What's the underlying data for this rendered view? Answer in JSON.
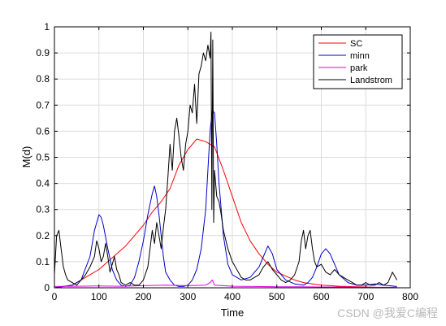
{
  "chart_data": {
    "type": "line",
    "xlabel": "Time",
    "ylabel": "M(d)",
    "xlim": [
      0,
      800
    ],
    "ylim": [
      0,
      1
    ],
    "xticks": [
      0,
      100,
      200,
      300,
      400,
      500,
      600,
      700,
      800
    ],
    "yticks": [
      0,
      0.1,
      0.2,
      0.3,
      0.4,
      0.5,
      0.6,
      0.7,
      0.8,
      0.9,
      1
    ],
    "grid": true,
    "legend_position": "top-right",
    "series": [
      {
        "name": "SC",
        "color": "#ff0000",
        "x": [
          0,
          20,
          40,
          60,
          80,
          100,
          120,
          140,
          160,
          180,
          200,
          220,
          240,
          260,
          280,
          300,
          320,
          340,
          350,
          360,
          380,
          400,
          420,
          440,
          460,
          480,
          500,
          520,
          540,
          560,
          580,
          600,
          620,
          640,
          660,
          680,
          700,
          720,
          740,
          770
        ],
        "y": [
          0.0,
          0.005,
          0.01,
          0.03,
          0.05,
          0.07,
          0.1,
          0.13,
          0.16,
          0.2,
          0.24,
          0.29,
          0.33,
          0.38,
          0.47,
          0.53,
          0.57,
          0.56,
          0.55,
          0.54,
          0.45,
          0.35,
          0.25,
          0.18,
          0.13,
          0.09,
          0.06,
          0.045,
          0.03,
          0.02,
          0.015,
          0.01,
          0.008,
          0.006,
          0.005,
          0.004,
          0.003,
          0.002,
          0.001,
          0.0
        ]
      },
      {
        "name": "minn",
        "color": "#0000cc",
        "x": [
          0,
          20,
          40,
          60,
          80,
          90,
          100,
          105,
          110,
          120,
          130,
          140,
          150,
          160,
          170,
          180,
          190,
          200,
          210,
          220,
          225,
          230,
          235,
          240,
          245,
          250,
          260,
          270,
          280,
          290,
          300,
          310,
          320,
          330,
          340,
          345,
          350,
          355,
          360,
          365,
          370,
          380,
          390,
          400,
          420,
          440,
          460,
          470,
          480,
          490,
          500,
          520,
          540,
          560,
          570,
          580,
          590,
          600,
          610,
          620,
          630,
          640,
          660,
          680,
          700,
          720,
          740,
          770
        ],
        "y": [
          0.0,
          0.005,
          0.01,
          0.03,
          0.12,
          0.22,
          0.28,
          0.27,
          0.24,
          0.15,
          0.07,
          0.03,
          0.01,
          0.005,
          0.01,
          0.04,
          0.1,
          0.18,
          0.28,
          0.36,
          0.39,
          0.35,
          0.28,
          0.2,
          0.12,
          0.06,
          0.03,
          0.01,
          0.005,
          0.005,
          0.01,
          0.03,
          0.07,
          0.15,
          0.3,
          0.45,
          0.6,
          0.68,
          0.67,
          0.55,
          0.4,
          0.2,
          0.09,
          0.05,
          0.03,
          0.04,
          0.08,
          0.12,
          0.16,
          0.13,
          0.07,
          0.03,
          0.015,
          0.01,
          0.02,
          0.04,
          0.08,
          0.13,
          0.15,
          0.13,
          0.09,
          0.05,
          0.02,
          0.01,
          0.01,
          0.015,
          0.01,
          0.005
        ]
      },
      {
        "name": "park",
        "color": "#e000e0",
        "x": [
          0,
          50,
          100,
          150,
          200,
          250,
          300,
          340,
          350,
          355,
          360,
          400,
          450,
          500,
          550,
          600,
          650,
          700,
          750,
          770
        ],
        "y": [
          0.005,
          0.006,
          0.007,
          0.006,
          0.008,
          0.01,
          0.008,
          0.01,
          0.02,
          0.03,
          0.01,
          0.006,
          0.005,
          0.004,
          0.004,
          0.003,
          0.003,
          0.002,
          0.002,
          0.002
        ]
      },
      {
        "name": "Landstrom",
        "color": "#000000",
        "x": [
          0,
          5,
          10,
          15,
          20,
          25,
          30,
          40,
          50,
          60,
          70,
          80,
          90,
          95,
          100,
          105,
          110,
          115,
          120,
          125,
          130,
          135,
          140,
          145,
          150,
          160,
          170,
          180,
          190,
          200,
          210,
          220,
          225,
          230,
          235,
          240,
          245,
          250,
          255,
          260,
          265,
          270,
          275,
          280,
          285,
          290,
          295,
          300,
          305,
          310,
          315,
          320,
          325,
          330,
          335,
          340,
          345,
          350,
          352,
          354,
          356,
          358,
          360,
          365,
          370,
          375,
          380,
          390,
          400,
          410,
          420,
          430,
          440,
          450,
          460,
          470,
          480,
          490,
          500,
          510,
          520,
          530,
          540,
          550,
          555,
          560,
          565,
          570,
          575,
          580,
          585,
          590,
          600,
          610,
          620,
          630,
          640,
          650,
          660,
          670,
          680,
          690,
          700,
          710,
          720,
          730,
          740,
          750,
          760,
          770
        ],
        "y": [
          0.05,
          0.2,
          0.22,
          0.15,
          0.08,
          0.05,
          0.03,
          0.02,
          0.01,
          0.03,
          0.05,
          0.08,
          0.12,
          0.18,
          0.15,
          0.1,
          0.12,
          0.17,
          0.12,
          0.06,
          0.09,
          0.12,
          0.07,
          0.05,
          0.02,
          0.01,
          0.02,
          0.01,
          0.01,
          0.03,
          0.08,
          0.22,
          0.17,
          0.25,
          0.2,
          0.15,
          0.23,
          0.3,
          0.42,
          0.55,
          0.45,
          0.6,
          0.65,
          0.58,
          0.5,
          0.45,
          0.55,
          0.6,
          0.7,
          0.67,
          0.78,
          0.63,
          0.82,
          0.85,
          0.9,
          0.87,
          0.93,
          0.88,
          0.98,
          0.3,
          0.95,
          0.25,
          0.45,
          0.35,
          0.33,
          0.28,
          0.22,
          0.15,
          0.1,
          0.07,
          0.04,
          0.03,
          0.03,
          0.04,
          0.05,
          0.08,
          0.1,
          0.07,
          0.05,
          0.03,
          0.02,
          0.03,
          0.05,
          0.1,
          0.18,
          0.22,
          0.15,
          0.2,
          0.22,
          0.15,
          0.1,
          0.08,
          0.09,
          0.06,
          0.05,
          0.07,
          0.05,
          0.04,
          0.03,
          0.02,
          0.01,
          0.01,
          0.02,
          0.01,
          0.01,
          0.02,
          0.01,
          0.02,
          0.06,
          0.03
        ]
      }
    ]
  },
  "watermark": "CSDN @我爱C编程"
}
